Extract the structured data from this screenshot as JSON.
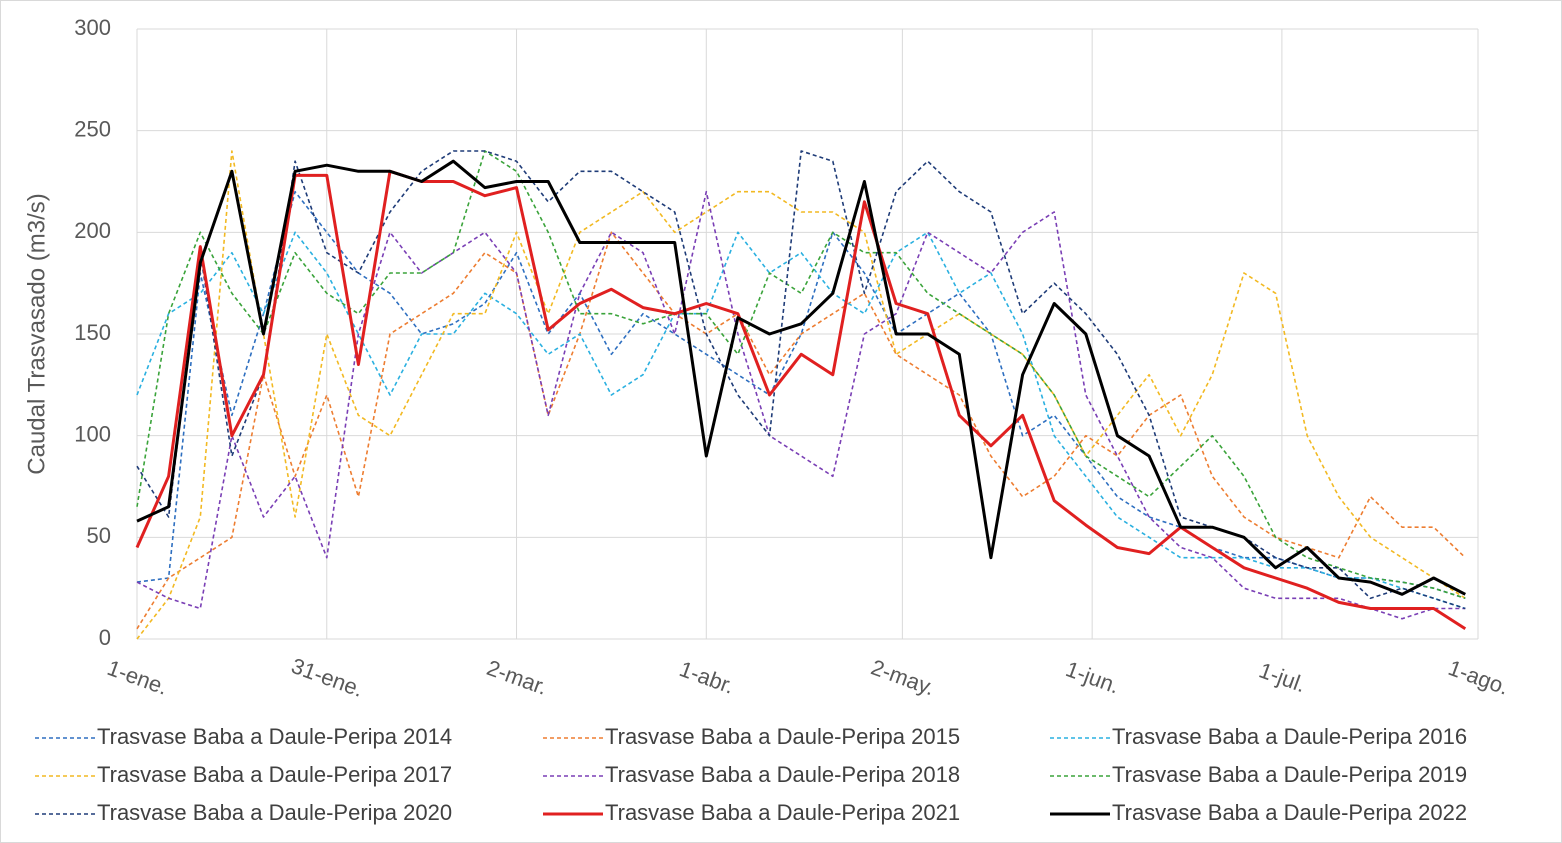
{
  "chart_data": {
    "type": "line",
    "y_label": "Caudal Trasvasado  (m3/s)",
    "x": [
      0,
      5,
      10,
      15,
      20,
      25,
      30,
      35,
      40,
      45,
      50,
      55,
      60,
      65,
      70,
      75,
      80,
      85,
      90,
      95,
      100,
      105,
      110,
      115,
      120,
      125,
      130,
      135,
      140,
      145,
      150,
      155,
      160,
      165,
      170,
      175,
      180,
      185,
      190,
      195,
      200,
      205,
      210
    ],
    "xlim": [
      0,
      212
    ],
    "xticks": [
      {
        "value": 0,
        "label": "1-ene."
      },
      {
        "value": 30,
        "label": "31-ene."
      },
      {
        "value": 60,
        "label": "2-mar."
      },
      {
        "value": 90,
        "label": "1-abr."
      },
      {
        "value": 121,
        "label": "2-may."
      },
      {
        "value": 151,
        "label": "1-jun."
      },
      {
        "value": 181,
        "label": "1-jul."
      },
      {
        "value": 212,
        "label": "1-ago."
      }
    ],
    "ylim": [
      0,
      300
    ],
    "yticks": [
      0,
      50,
      100,
      150,
      200,
      250,
      300
    ],
    "grid": true,
    "legend": "bottom",
    "series": [
      {
        "name": "Trasvase Baba a Daule-Peripa 2014",
        "color": "#2e6fc0",
        "line_style": "dashed",
        "values": [
          28,
          30,
          180,
          110,
          160,
          220,
          200,
          180,
          170,
          150,
          155,
          165,
          190,
          150,
          170,
          140,
          160,
          150,
          140,
          130,
          120,
          150,
          200,
          180,
          150,
          160,
          170,
          150,
          100,
          110,
          90,
          70,
          60,
          55,
          45,
          40,
          40,
          35,
          30,
          30,
          28,
          25,
          20
        ]
      },
      {
        "name": "Trasvase Baba a Daule-Peripa 2015",
        "color": "#ed7d31",
        "line_style": "dashed",
        "values": [
          5,
          30,
          40,
          50,
          130,
          80,
          120,
          70,
          150,
          160,
          170,
          190,
          180,
          110,
          150,
          200,
          180,
          160,
          150,
          160,
          130,
          150,
          160,
          170,
          140,
          130,
          120,
          90,
          70,
          80,
          100,
          90,
          110,
          120,
          80,
          60,
          50,
          45,
          40,
          70,
          55,
          55,
          40
        ]
      },
      {
        "name": "Trasvase Baba a Daule-Peripa 2016",
        "color": "#2ab0e0",
        "line_style": "dashed",
        "values": [
          120,
          160,
          170,
          190,
          160,
          200,
          180,
          150,
          120,
          150,
          150,
          170,
          160,
          140,
          150,
          120,
          130,
          160,
          160,
          200,
          180,
          190,
          170,
          160,
          190,
          200,
          170,
          180,
          150,
          100,
          80,
          60,
          50,
          40,
          40,
          40,
          35,
          35,
          30,
          30,
          25,
          20,
          15
        ]
      },
      {
        "name": "Trasvase Baba a Daule-Peripa 2017",
        "color": "#f2b922",
        "line_style": "dashed",
        "values": [
          0,
          20,
          60,
          240,
          150,
          60,
          150,
          110,
          100,
          130,
          160,
          160,
          200,
          160,
          200,
          210,
          220,
          200,
          210,
          220,
          220,
          210,
          210,
          200,
          140,
          150,
          160,
          150,
          140,
          120,
          90,
          110,
          130,
          100,
          130,
          180,
          170,
          100,
          70,
          50,
          40,
          30,
          20
        ]
      },
      {
        "name": "Trasvase Baba a Daule-Peripa 2018",
        "color": "#7a3fb5",
        "line_style": "dashed",
        "values": [
          28,
          20,
          15,
          100,
          60,
          80,
          40,
          150,
          200,
          180,
          190,
          200,
          180,
          110,
          170,
          200,
          190,
          150,
          220,
          150,
          100,
          90,
          80,
          150,
          160,
          200,
          190,
          180,
          200,
          210,
          120,
          90,
          60,
          45,
          40,
          25,
          20,
          20,
          20,
          15,
          10,
          15,
          15
        ]
      },
      {
        "name": "Trasvase Baba a Daule-Peripa 2019",
        "color": "#3aa33a",
        "line_style": "dashed",
        "values": [
          65,
          160,
          200,
          170,
          150,
          190,
          170,
          160,
          180,
          180,
          190,
          240,
          230,
          200,
          160,
          160,
          155,
          160,
          160,
          140,
          180,
          170,
          200,
          190,
          190,
          170,
          160,
          150,
          140,
          120,
          90,
          80,
          70,
          85,
          100,
          80,
          50,
          40,
          35,
          30,
          28,
          25,
          20
        ]
      },
      {
        "name": "Trasvase Baba a Daule-Peripa 2020",
        "color": "#1f3c78",
        "line_style": "dashed",
        "values": [
          85,
          60,
          190,
          90,
          130,
          235,
          190,
          180,
          210,
          230,
          240,
          240,
          235,
          215,
          230,
          230,
          220,
          210,
          150,
          120,
          100,
          240,
          235,
          170,
          220,
          235,
          220,
          210,
          160,
          175,
          160,
          140,
          110,
          60,
          55,
          50,
          40,
          35,
          35,
          20,
          25,
          20,
          15
        ]
      },
      {
        "name": "Trasvase Baba a Daule-Peripa 2021",
        "color": "#e02020",
        "line_style": "solid",
        "values": [
          45,
          80,
          193,
          100,
          130,
          228,
          228,
          135,
          230,
          225,
          225,
          218,
          222,
          152,
          165,
          172,
          163,
          160,
          165,
          160,
          120,
          140,
          130,
          215,
          165,
          160,
          110,
          95,
          110,
          68,
          56,
          45,
          42,
          55,
          45,
          35,
          30,
          25,
          18,
          15,
          15,
          15,
          5
        ]
      },
      {
        "name": "Trasvase Baba a Daule-Peripa 2022",
        "color": "#000000",
        "line_style": "solid",
        "values": [
          58,
          65,
          185,
          230,
          150,
          230,
          233,
          230,
          230,
          225,
          235,
          222,
          225,
          225,
          195,
          195,
          195,
          195,
          90,
          158,
          150,
          155,
          170,
          225,
          150,
          150,
          140,
          40,
          130,
          165,
          150,
          100,
          90,
          55,
          55,
          50,
          35,
          45,
          30,
          28,
          22,
          30,
          22
        ]
      }
    ]
  }
}
